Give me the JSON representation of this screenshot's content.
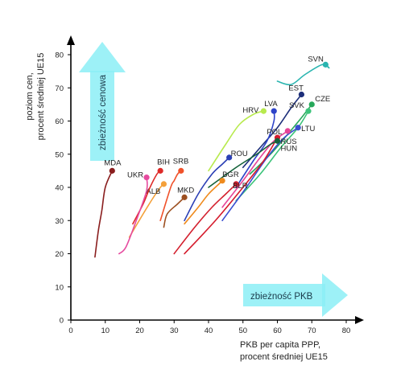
{
  "chart_data": {
    "type": "scatter",
    "xlabel": [
      "PKB per capita PPP,",
      "procent średniej UE15"
    ],
    "ylabel": [
      "poziom cen,",
      "procent średniej UE15"
    ],
    "xlim": [
      0,
      80
    ],
    "ylim": [
      0,
      80
    ],
    "xticks": [
      0,
      10,
      20,
      30,
      40,
      50,
      60,
      70,
      80
    ],
    "yticks": [
      0,
      10,
      20,
      30,
      40,
      50,
      60,
      70,
      80
    ],
    "grid": false,
    "annotations": {
      "price_convergence": "zbieżność cenowa",
      "gdp_convergence": "zbieżność PKB"
    },
    "series": [
      {
        "name": "SVN",
        "color": "#2ab5b0",
        "x": [
          60,
          64,
          68,
          73,
          75,
          74
        ],
        "y": [
          72,
          71,
          74,
          77,
          76,
          77
        ],
        "label_dx": -22,
        "label_dy": -4
      },
      {
        "name": "EST",
        "color": "#1d2f7a",
        "x": [
          50,
          55,
          60,
          64,
          67
        ],
        "y": [
          46,
          52,
          58,
          64,
          68
        ],
        "label_dx": -16,
        "label_dy": -5
      },
      {
        "name": "CZE",
        "color": "#27a85a",
        "x": [
          52,
          58,
          63,
          67,
          70
        ],
        "y": [
          44,
          50,
          56,
          61,
          65
        ],
        "label_dx": 4,
        "label_dy": -4
      },
      {
        "name": "SVK",
        "color": "#3cc37a",
        "x": [
          48,
          55,
          61,
          66,
          69
        ],
        "y": [
          36,
          44,
          52,
          58,
          63
        ],
        "label_dx": -24,
        "label_dy": -4
      },
      {
        "name": "LVA",
        "color": "#2d43c8",
        "x": [
          48,
          53,
          57,
          59,
          59
        ],
        "y": [
          40,
          48,
          54,
          60,
          63
        ],
        "label_dx": -12,
        "label_dy": -6
      },
      {
        "name": "HRV",
        "color": "#b8ea4e",
        "x": [
          40,
          45,
          49,
          53,
          56
        ],
        "y": [
          45,
          53,
          59,
          62,
          63
        ],
        "label_dx": -26,
        "label_dy": 2
      },
      {
        "name": "LTU",
        "color": "#3a4ed0",
        "x": [
          44,
          51,
          57,
          62,
          66
        ],
        "y": [
          30,
          40,
          49,
          55,
          58
        ],
        "label_dx": 4,
        "label_dy": 4
      },
      {
        "name": "POL",
        "color": "#e64497",
        "x": [
          44,
          50,
          55,
          59,
          63
        ],
        "y": [
          34,
          42,
          49,
          54,
          57
        ],
        "label_dx": -26,
        "label_dy": 4
      },
      {
        "name": "RUS",
        "color": "#d51b2c",
        "x": [
          33,
          42,
          50,
          56,
          60
        ],
        "y": [
          20,
          30,
          40,
          48,
          55
        ],
        "label_dx": 4,
        "label_dy": 8
      },
      {
        "name": "HUN",
        "color": "#14623a",
        "x": [
          40,
          48,
          54,
          58,
          60
        ],
        "y": [
          40,
          46,
          50,
          53,
          54
        ],
        "label_dx": 4,
        "label_dy": 12
      },
      {
        "name": "ROU",
        "color": "#2b3fb5",
        "x": [
          33,
          37,
          41,
          44,
          46
        ],
        "y": [
          30,
          38,
          44,
          47,
          49
        ],
        "label_dx": 2,
        "label_dy": -2
      },
      {
        "name": "BGR",
        "color": "#ef8a1c",
        "x": [
          33,
          37,
          40,
          43,
          44
        ],
        "y": [
          29,
          34,
          38,
          41,
          42
        ],
        "label_dx": 0,
        "label_dy": -5
      },
      {
        "name": "BLR",
        "color": "#d3202e",
        "x": [
          30,
          36,
          41,
          45,
          48
        ],
        "y": [
          20,
          28,
          34,
          38,
          41
        ],
        "label_dx": -4,
        "label_dy": 5
      },
      {
        "name": "SRB",
        "color": "#f0512a",
        "x": [
          26,
          29,
          30,
          31,
          32
        ],
        "y": [
          30,
          40,
          42,
          44,
          45
        ],
        "label_dx": -10,
        "label_dy": -9
      },
      {
        "name": "MKD",
        "color": "#9c4f20",
        "x": [
          27,
          28,
          31,
          33,
          33
        ],
        "y": [
          28,
          32,
          35,
          37,
          37
        ],
        "label_dx": -9,
        "label_dy": -6
      },
      {
        "name": "ALB",
        "color": "#f4a03a",
        "x": [
          17,
          21,
          24,
          26,
          27
        ],
        "y": [
          25,
          32,
          37,
          40,
          41
        ],
        "label_dx": -22,
        "label_dy": 12
      },
      {
        "name": "BIH",
        "color": "#de2a28",
        "x": [
          18,
          21,
          23,
          25,
          26
        ],
        "y": [
          29,
          35,
          40,
          44,
          45
        ],
        "label_dx": -4,
        "label_dy": -8
      },
      {
        "name": "UKR",
        "color": "#e64a9f",
        "x": [
          14,
          16,
          19,
          22,
          22
        ],
        "y": [
          20,
          22,
          30,
          39,
          43
        ],
        "label_dx": -24,
        "label_dy": 0
      },
      {
        "name": "MDA",
        "color": "#8a1e1e",
        "x": [
          7,
          8,
          9,
          10,
          12
        ],
        "y": [
          19,
          27,
          33,
          40,
          45
        ],
        "label_dx": -10,
        "label_dy": -7
      }
    ]
  }
}
